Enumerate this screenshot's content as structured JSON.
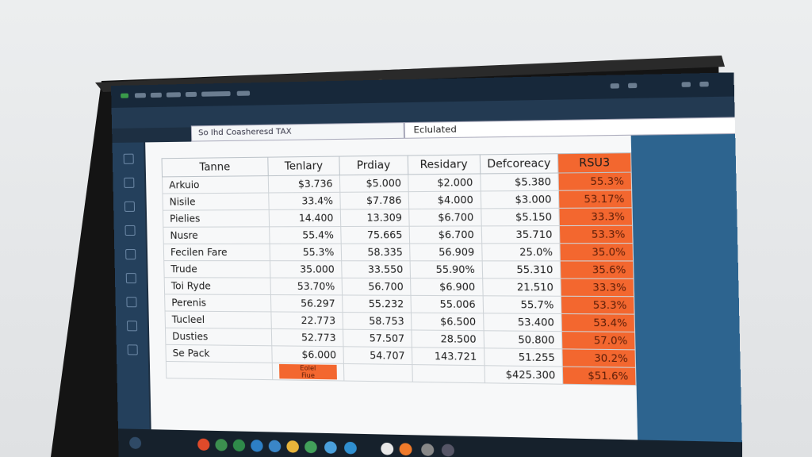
{
  "toolbar": {
    "cell_reference": "So Ihd Coasheresd TAX",
    "formula": "Eclulated"
  },
  "table": {
    "headers": [
      "Tanne",
      "Tenlary",
      "Prdiay",
      "Residary",
      "Defcoreacy",
      "RSU3"
    ],
    "rows": [
      [
        "Arkuio",
        "$3.736",
        "$5.000",
        "$2.000",
        "$5.380",
        "55.3%"
      ],
      [
        "Nisile",
        "33.4%",
        "$7.786",
        "$4.000",
        "$3.000",
        "53.17%"
      ],
      [
        "Pielies",
        "14.400",
        "13.309",
        "$6.700",
        "$5.150",
        "33.3%"
      ],
      [
        "Nusre",
        "55.4%",
        "75.665",
        "$6.700",
        "35.710",
        "53.3%"
      ],
      [
        "Fecilen Fare",
        "55.3%",
        "58.335",
        "56.909",
        "25.0%",
        "35.0%"
      ],
      [
        "Trude",
        "35.000",
        "33.550",
        "55.90%",
        "55.310",
        "35.6%"
      ],
      [
        "Toi Ryde",
        "53.70%",
        "56.700",
        "$6.900",
        "21.510",
        "33.3%"
      ],
      [
        "Perenis",
        "56.297",
        "55.232",
        "55.006",
        "55.7%",
        "53.3%"
      ],
      [
        "Tucleel",
        "22.773",
        "58.753",
        "$6.500",
        "53.400",
        "53.4%"
      ],
      [
        "Dusties",
        "52.773",
        "57.507",
        "28.500",
        "50.800",
        "57.0%"
      ],
      [
        "Se Pack",
        "$6.000",
        "54.707",
        "143.721",
        "51.255",
        "30.2%"
      ]
    ],
    "footer": {
      "label": "Eolel Fiue",
      "total": "$425.300",
      "rsu": "$51.6%"
    }
  }
}
